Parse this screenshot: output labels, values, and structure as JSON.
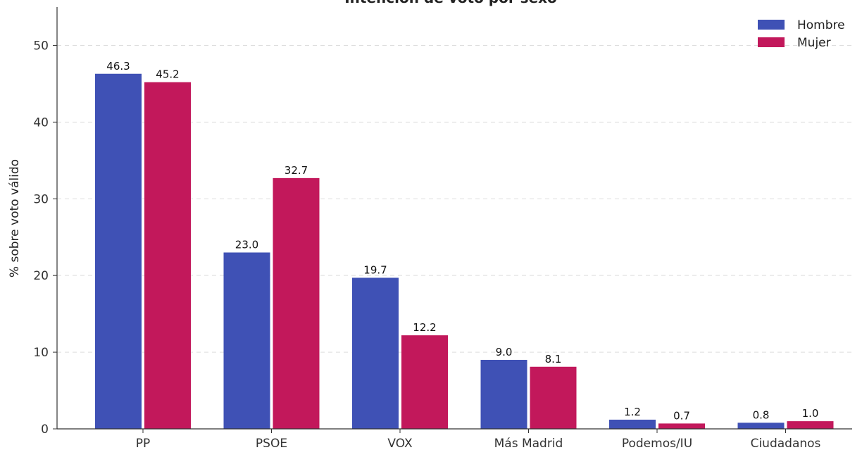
{
  "chart_data": {
    "type": "bar",
    "title": "Intención de voto por sexo",
    "xlabel": "",
    "ylabel": "% sobre voto válido",
    "categories": [
      "PP",
      "PSOE",
      "VOX",
      "Más Madrid",
      "Podemos/IU",
      "Ciudadanos"
    ],
    "series": [
      {
        "name": "Hombre",
        "color": "#3f51b5",
        "values": [
          46.3,
          23.0,
          19.7,
          9.0,
          1.2,
          0.8
        ],
        "labels": [
          "46.3",
          "23.0",
          "19.7",
          "9.0",
          "1.2",
          "0.8"
        ]
      },
      {
        "name": "Mujer",
        "color": "#c2185b",
        "values": [
          45.2,
          32.7,
          12.2,
          8.1,
          0.7,
          1.0
        ],
        "labels": [
          "45.2",
          "32.7",
          "12.2",
          "8.1",
          "0.7",
          "1.0"
        ]
      }
    ],
    "ylim": [
      0,
      55
    ],
    "yticks": [
      0,
      10,
      20,
      30,
      40,
      50
    ],
    "ytick_labels": [
      "0",
      "10",
      "20",
      "30",
      "40",
      "50"
    ],
    "grid": true,
    "legend_position": "top-right"
  }
}
